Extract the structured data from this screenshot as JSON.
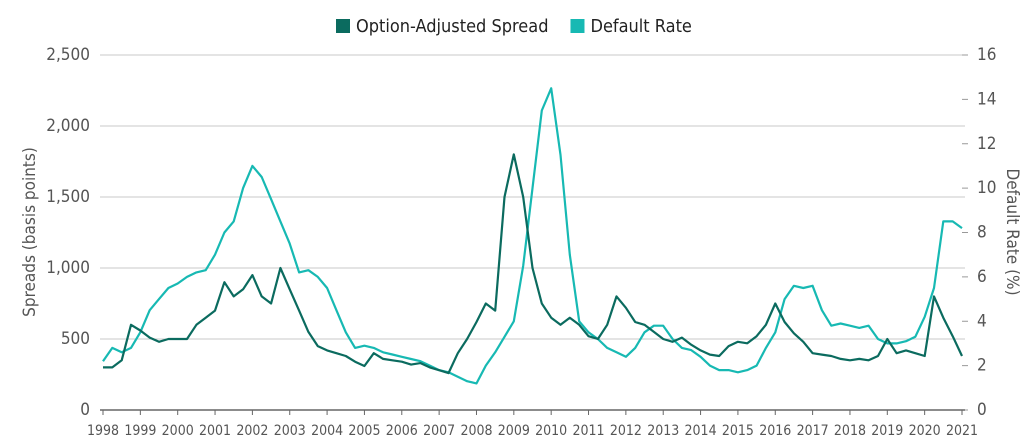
{
  "chart_data": {
    "type": "line",
    "y_label": "Spreads (basis points)",
    "y2_label": "Default Rate (%)",
    "xlim": [
      1998,
      2021
    ],
    "xticks": [
      1998,
      1999,
      2000,
      2001,
      2002,
      2003,
      2004,
      2005,
      2006,
      2007,
      2008,
      2009,
      2010,
      2011,
      2012,
      2013,
      2014,
      2015,
      2016,
      2017,
      2018,
      2019,
      2020,
      2021
    ],
    "ylim": [
      0,
      2500
    ],
    "yticks": [
      0,
      500,
      {
        "value": 1000,
        "label": "1,000"
      },
      {
        "value": 1500,
        "label": "1,500"
      },
      {
        "value": 2000,
        "label": "2,000"
      },
      {
        "value": 2500,
        "label": "2,500"
      }
    ],
    "y2lim": [
      0,
      16
    ],
    "y2ticks": [
      0,
      2,
      4,
      6,
      8,
      10,
      12,
      14,
      16
    ],
    "grid": true,
    "legend": "top",
    "x": [
      1998,
      1998.25,
      1998.5,
      1998.75,
      1999,
      1999.25,
      1999.5,
      1999.75,
      2000,
      2000.25,
      2000.5,
      2000.75,
      2001,
      2001.25,
      2001.5,
      2001.75,
      2002,
      2002.25,
      2002.5,
      2002.75,
      2003,
      2003.25,
      2003.5,
      2003.75,
      2004,
      2004.25,
      2004.5,
      2004.75,
      2005,
      2005.25,
      2005.5,
      2005.75,
      2006,
      2006.25,
      2006.5,
      2006.75,
      2007,
      2007.25,
      2007.5,
      2007.75,
      2008,
      2008.25,
      2008.5,
      2008.75,
      2009,
      2009.25,
      2009.5,
      2009.75,
      2010,
      2010.25,
      2010.5,
      2010.75,
      2011,
      2011.25,
      2011.5,
      2011.75,
      2012,
      2012.25,
      2012.5,
      2012.75,
      2013,
      2013.25,
      2013.5,
      2013.75,
      2014,
      2014.25,
      2014.5,
      2014.75,
      2015,
      2015.25,
      2015.5,
      2015.75,
      2016,
      2016.25,
      2016.5,
      2016.75,
      2017,
      2017.25,
      2017.5,
      2017.75,
      2018,
      2018.25,
      2018.5,
      2018.75,
      2019,
      2019.25,
      2019.5,
      2019.75,
      2020,
      2020.25,
      2020.5,
      2020.75,
      2021
    ],
    "series": [
      {
        "name": "Option-Adjusted Spread",
        "color": "#0b6b5f",
        "values": [
          300,
          300,
          350,
          600,
          560,
          510,
          480,
          500,
          500,
          500,
          600,
          650,
          700,
          900,
          800,
          850,
          950,
          800,
          750,
          1000,
          850,
          700,
          550,
          450,
          420,
          400,
          380,
          340,
          310,
          400,
          360,
          350,
          340,
          320,
          330,
          300,
          280,
          260,
          400,
          500,
          620,
          750,
          700,
          1500,
          1800,
          1500,
          1000,
          750,
          650,
          600,
          650,
          600,
          520,
          500,
          600,
          800,
          720,
          620,
          600,
          550,
          500,
          480,
          510,
          460,
          420,
          390,
          380,
          450,
          480,
          470,
          520,
          600,
          750,
          620,
          540,
          480,
          400,
          390,
          380,
          360,
          350,
          360,
          350,
          380,
          500,
          400,
          420,
          400,
          380,
          800,
          650,
          520,
          380
        ]
      },
      {
        "name": "Default Rate",
        "color": "#17b9b3",
        "axis": "y2",
        "values": [
          2.2,
          2.8,
          2.6,
          2.8,
          3.5,
          4.5,
          5.0,
          5.5,
          5.7,
          6.0,
          6.2,
          6.3,
          7.0,
          8.0,
          8.5,
          10.0,
          11.0,
          10.5,
          9.5,
          8.5,
          7.5,
          6.2,
          6.3,
          6.0,
          5.5,
          4.5,
          3.5,
          2.8,
          2.9,
          2.8,
          2.6,
          2.5,
          2.4,
          2.3,
          2.2,
          2.0,
          1.8,
          1.7,
          1.5,
          1.3,
          1.2,
          2.0,
          2.6,
          3.3,
          4.0,
          6.5,
          10.0,
          13.5,
          14.5,
          11.5,
          7.0,
          4.0,
          3.5,
          3.2,
          2.8,
          2.6,
          2.4,
          2.8,
          3.5,
          3.8,
          3.8,
          3.2,
          2.8,
          2.7,
          2.4,
          2.0,
          1.8,
          1.8,
          1.7,
          1.8,
          2.0,
          2.8,
          3.5,
          5.0,
          5.6,
          5.5,
          5.6,
          4.5,
          3.8,
          3.9,
          3.8,
          3.7,
          3.8,
          3.2,
          3.0,
          3.0,
          3.1,
          3.3,
          4.2,
          5.5,
          8.5,
          8.5,
          8.2
        ]
      }
    ]
  }
}
